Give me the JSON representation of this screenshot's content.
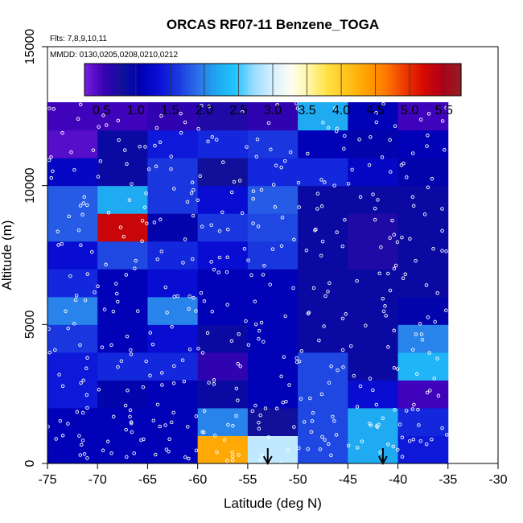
{
  "chart_data": {
    "type": "heatmap",
    "title": "ORCAS RF07-11 Benzene_TOGA",
    "notes": {
      "flights": "Flts: 7,8,9,10,11",
      "dates": "MMDD: 0130,0205,0208,0210,0212"
    },
    "xlabel": "Latitude (deg N)",
    "ylabel": "Altitude (m)",
    "xlim": [
      -75,
      -30
    ],
    "ylim": [
      0,
      15000
    ],
    "x_ticks": [
      "-75",
      "-70",
      "-65",
      "-60",
      "-55",
      "-50",
      "-45",
      "-40",
      "-35",
      "-30"
    ],
    "y_ticks": [
      "0",
      "5000",
      "10000",
      "15000"
    ],
    "colorbar": {
      "range": [
        0.25,
        5.75
      ],
      "ticks": [
        "0.5",
        "1.0",
        "1.5",
        "2.0",
        "2.5",
        "3.0",
        "3.5",
        "4.0",
        "4.5",
        "5.0",
        "5.5"
      ],
      "colors": [
        "#7a1fe0",
        "#3a00b8",
        "#10109a",
        "#0000b4",
        "#0a10d8",
        "#1a3ae0",
        "#2d6ee8",
        "#1ea8f0",
        "#22c4ff",
        "#9adcff",
        "#d6f0ff",
        "#fffef0",
        "#fff59a",
        "#ffde3c",
        "#ffc21a",
        "#ffa000",
        "#ff7a00",
        "#ee3a00",
        "#d60a00",
        "#b0001a",
        "#902020"
      ]
    },
    "lat_bins": [
      -75,
      -70,
      -65,
      -60,
      -55,
      -50,
      -45,
      -40,
      -35
    ],
    "alt_bins": [
      0,
      1000,
      2000,
      3000,
      4000,
      5000,
      6000,
      7000,
      8000,
      9000,
      10000,
      11000,
      12000
    ],
    "cells": [
      [
        1.1,
        1.1,
        1.1,
        4.3,
        2.9,
        1.7,
        2.2,
        1.4
      ],
      [
        1.1,
        1.1,
        1.1,
        2.0,
        0.8,
        1.7,
        2.2,
        1.5
      ],
      [
        1.4,
        1.0,
        1.1,
        0.9,
        1.1,
        1.7,
        1.3,
        0.5
      ],
      [
        1.4,
        1.5,
        1.5,
        0.6,
        1.1,
        1.7,
        0.9,
        2.3
      ],
      [
        1.6,
        1.1,
        1.3,
        0.9,
        1.1,
        0.9,
        0.9,
        2.0
      ],
      [
        2.0,
        1.1,
        2.0,
        1.1,
        1.1,
        0.9,
        0.9,
        1.0
      ],
      [
        1.5,
        1.1,
        1.3,
        1.1,
        1.1,
        0.9,
        0.9,
        0.9
      ],
      [
        1.3,
        1.7,
        1.5,
        1.3,
        1.6,
        0.9,
        0.7,
        0.9
      ],
      [
        1.8,
        5.3,
        1.0,
        1.6,
        1.7,
        0.9,
        0.7,
        0.9
      ],
      [
        1.8,
        2.2,
        1.6,
        1.3,
        1.8,
        0.9,
        0.9,
        0.9
      ],
      [
        1.2,
        0.9,
        1.6,
        0.8,
        1.5,
        1.5,
        1.2,
        1.0
      ],
      [
        0.4,
        0.9,
        1.4,
        1.5,
        1.6,
        1.1,
        1.0,
        1.1
      ],
      [
        0.5,
        0.5,
        0.6,
        0.7,
        0.6,
        2.2,
        1.1,
        0.5
      ]
    ],
    "markers": [
      {
        "lat": -53,
        "label": "arrow"
      },
      {
        "lat": -41.5,
        "label": "arrow"
      }
    ],
    "grid": false
  }
}
